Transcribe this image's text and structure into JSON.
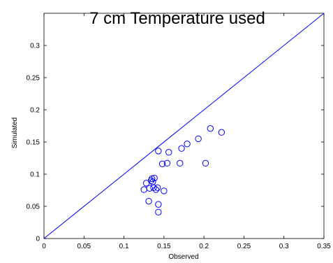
{
  "chart_data": {
    "type": "scatter",
    "title": "7 cm Temperature used",
    "xlabel": "Observed",
    "ylabel": "Simulated",
    "xlim": [
      0,
      0.35
    ],
    "ylim": [
      0,
      0.35
    ],
    "xticks": [
      0,
      0.05,
      0.1,
      0.15,
      0.2,
      0.25,
      0.3,
      0.35
    ],
    "xtick_labels": [
      "0",
      "0.05",
      "0.1",
      "0.15",
      "0.2",
      "0.25",
      "0.3",
      "0.35"
    ],
    "yticks": [
      0,
      0.05,
      0.1,
      0.15,
      0.2,
      0.25,
      0.3
    ],
    "ytick_labels": [
      "0",
      "0.05",
      "0.1",
      "0.15",
      "0.2",
      "0.25",
      "0.3"
    ],
    "grid": false,
    "reference_line": {
      "kind": "1:1",
      "x": [
        0,
        0.35
      ],
      "y": [
        0,
        0.35
      ],
      "color": "#0000ff"
    },
    "marker": {
      "shape": "open-circle",
      "color": "#0000ff"
    },
    "points": [
      {
        "x": 0.125,
        "y": 0.076
      },
      {
        "x": 0.128,
        "y": 0.086
      },
      {
        "x": 0.131,
        "y": 0.058
      },
      {
        "x": 0.132,
        "y": 0.078
      },
      {
        "x": 0.134,
        "y": 0.09
      },
      {
        "x": 0.135,
        "y": 0.093
      },
      {
        "x": 0.136,
        "y": 0.088
      },
      {
        "x": 0.137,
        "y": 0.079
      },
      {
        "x": 0.138,
        "y": 0.094
      },
      {
        "x": 0.14,
        "y": 0.076
      },
      {
        "x": 0.142,
        "y": 0.079
      },
      {
        "x": 0.143,
        "y": 0.053
      },
      {
        "x": 0.143,
        "y": 0.041
      },
      {
        "x": 0.143,
        "y": 0.136
      },
      {
        "x": 0.148,
        "y": 0.116
      },
      {
        "x": 0.15,
        "y": 0.074
      },
      {
        "x": 0.154,
        "y": 0.117
      },
      {
        "x": 0.156,
        "y": 0.134
      },
      {
        "x": 0.17,
        "y": 0.117
      },
      {
        "x": 0.172,
        "y": 0.14
      },
      {
        "x": 0.179,
        "y": 0.147
      },
      {
        "x": 0.193,
        "y": 0.155
      },
      {
        "x": 0.202,
        "y": 0.117
      },
      {
        "x": 0.208,
        "y": 0.171
      },
      {
        "x": 0.222,
        "y": 0.165
      }
    ]
  }
}
